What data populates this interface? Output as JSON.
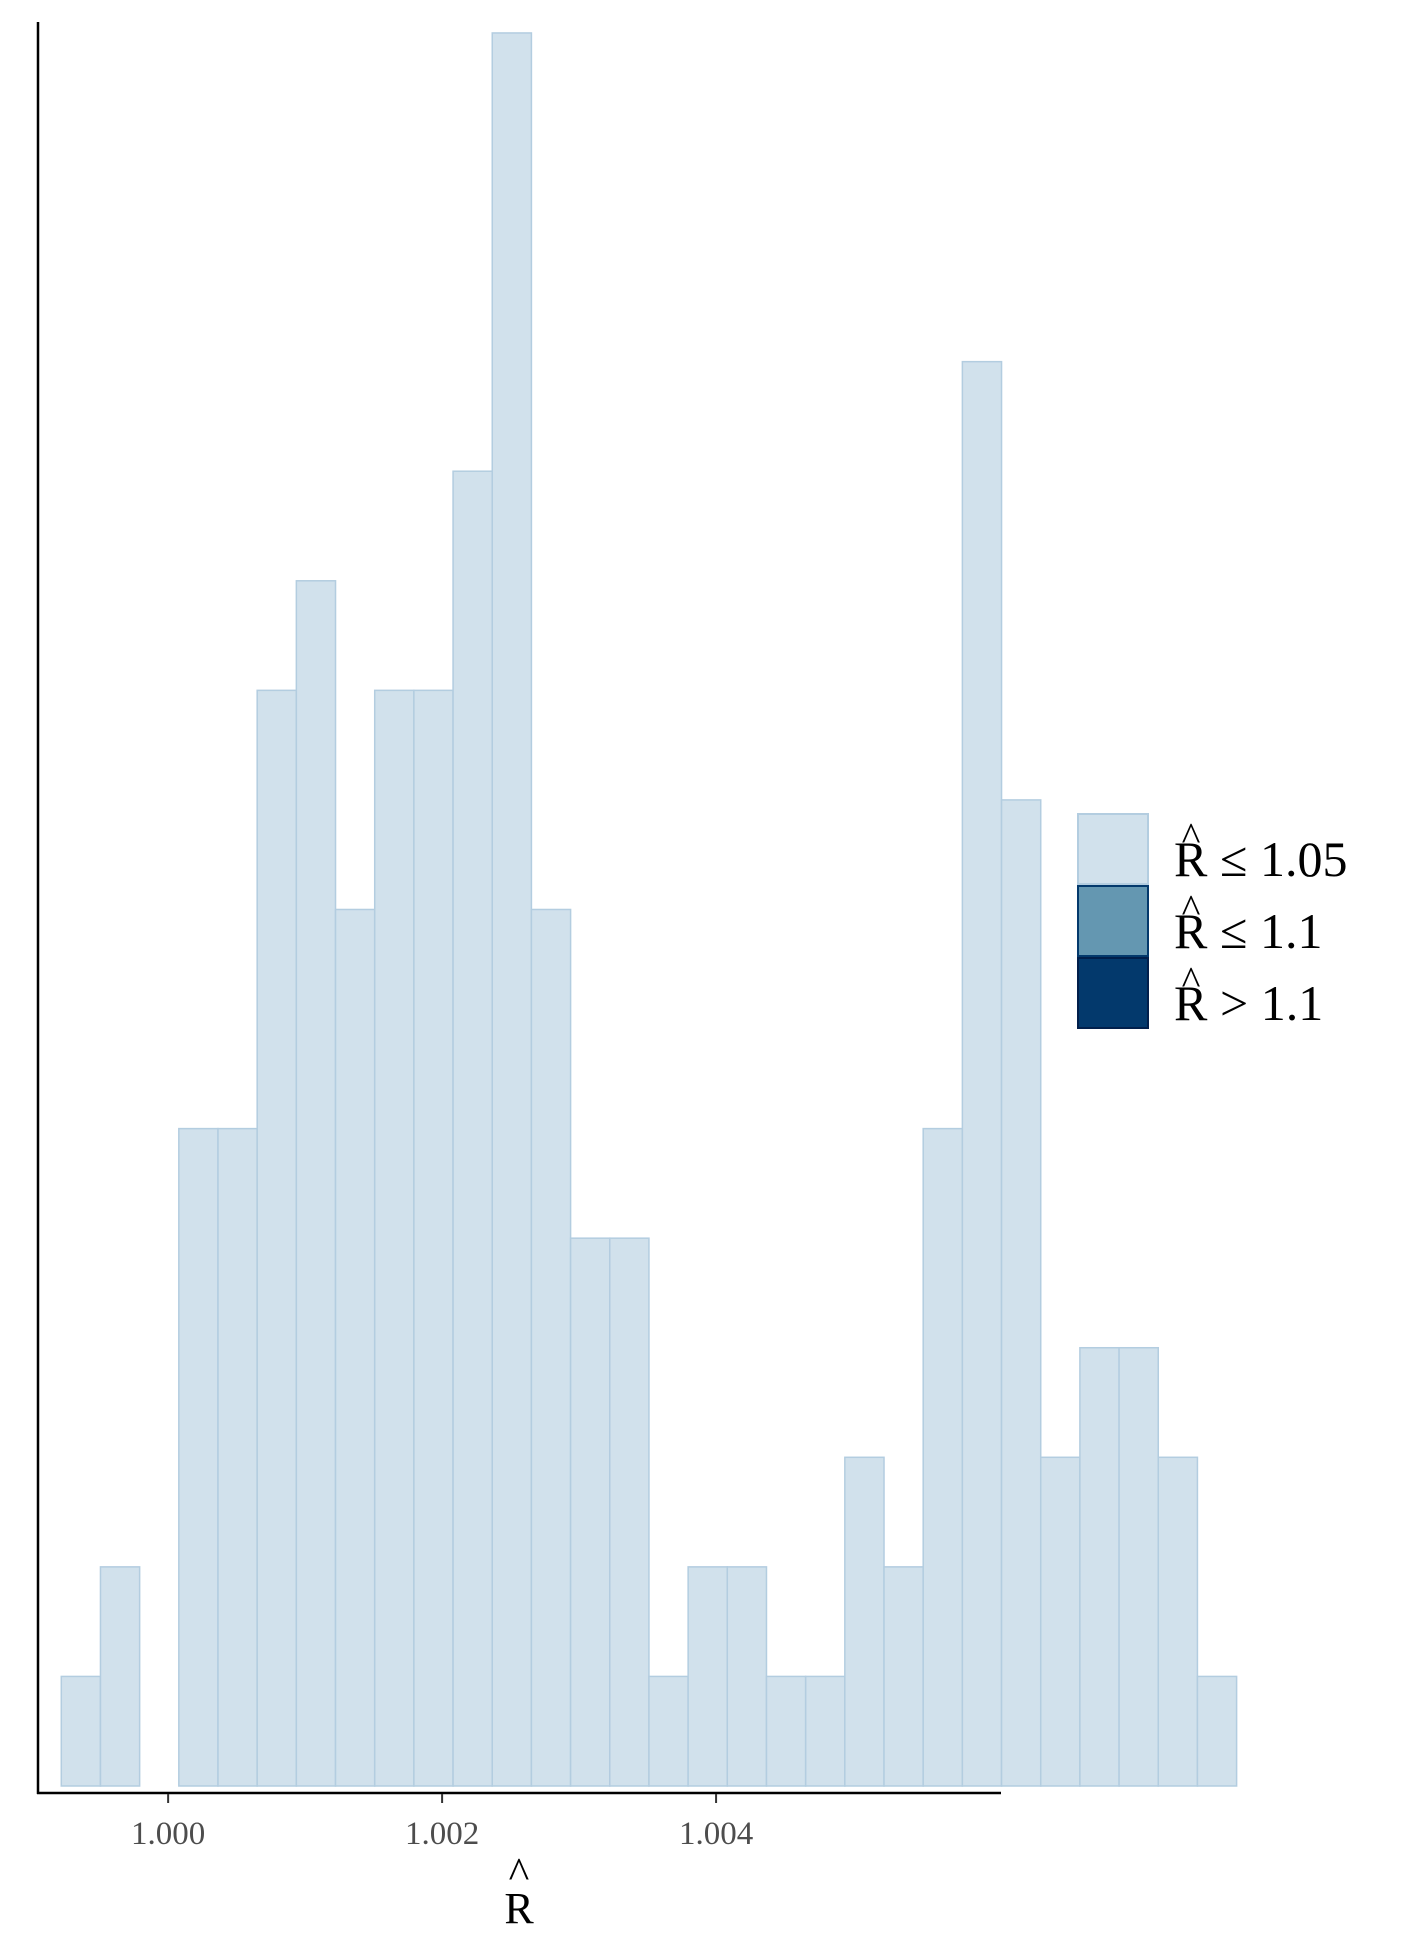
{
  "chart_data": {
    "type": "bar",
    "subtype": "histogram",
    "bin_width": 0.000286,
    "bin_starts": [
      0.99922,
      0.999506,
      0.999792,
      1.000078,
      1.000364,
      1.00065,
      1.000936,
      1.001222,
      1.001508,
      1.001794,
      1.00208,
      1.002366,
      1.002652,
      1.002938,
      1.003224,
      1.00351,
      1.003796,
      1.004082,
      1.004368,
      1.004654,
      1.00494,
      1.005226,
      1.005512,
      1.005798,
      1.006084,
      1.00637,
      1.006656,
      1.006942,
      1.007228,
      1.007514
    ],
    "counts": [
      1,
      2,
      0,
      6,
      6,
      10,
      11,
      8,
      10,
      10,
      12,
      16,
      8,
      5,
      5,
      1,
      2,
      2,
      1,
      1,
      3,
      2,
      6,
      13,
      9,
      3,
      4,
      4,
      3,
      1
    ],
    "fill_color": "#d1e1ec",
    "edge_color": "#b3cde0",
    "xlim": [
      0.99905,
      1.00608
    ],
    "ylim": [
      0,
      16.1
    ],
    "x_ticks": [
      1.0,
      1.002,
      1.004
    ],
    "x_tick_labels": [
      "1.000",
      "1.002",
      "1.004"
    ],
    "xlabel": "R",
    "xlabel_hat": "^",
    "legend": {
      "position": "right",
      "entries": [
        {
          "symbol": "R",
          "hat": "^",
          "relation": "≤ 1.05",
          "color": "#d1e1ec",
          "edge": "#b3cde0"
        },
        {
          "symbol": "R",
          "hat": "^",
          "relation": "≤ 1.1",
          "color": "#6497b1",
          "edge": "#03396c"
        },
        {
          "symbol": "R",
          "hat": "^",
          "relation": "> 1.1",
          "color": "#03396c",
          "edge": "#011f4b"
        }
      ]
    }
  }
}
